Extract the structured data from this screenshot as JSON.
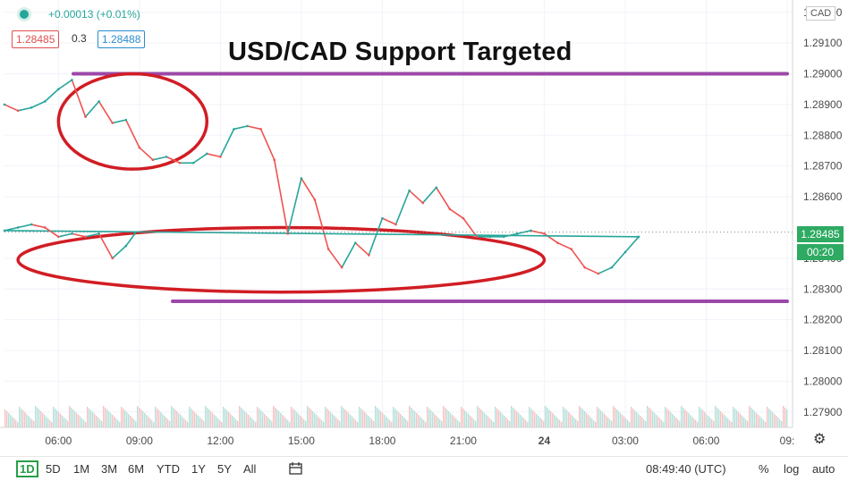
{
  "header": {
    "change": "+0.00013 (+0.01%)",
    "bid_price": "1.28485",
    "spread": "0.3",
    "ask_price": "1.28488",
    "currency": "CAD"
  },
  "headline": "USD/CAD Support Targeted",
  "price_axis": {
    "ticks": [
      "1.29200",
      "1.29100",
      "1.29000",
      "1.28900",
      "1.28800",
      "1.28700",
      "1.28600",
      "1.28400",
      "1.28300",
      "1.28200",
      "1.28100",
      "1.28000",
      "1.27900"
    ],
    "current_price": "1.28485",
    "countdown": "00:20"
  },
  "time_axis": {
    "ticks": [
      "06:00",
      "09:00",
      "12:00",
      "15:00",
      "18:00",
      "21:00",
      "24",
      "03:00",
      "06:00",
      "09:"
    ]
  },
  "bottom_bar": {
    "ranges": [
      "1D",
      "5D",
      "1M",
      "3M",
      "6M",
      "YTD",
      "1Y",
      "5Y",
      "All"
    ],
    "active_range": "1D",
    "clock": "08:49:40 (UTC)",
    "percent": "%",
    "log": "log",
    "auto": "auto"
  },
  "colors": {
    "up": "#26a69a",
    "down": "#ef5350",
    "line": "#9c48a8",
    "circle": "#d11d24",
    "tag": "#2eaa62"
  },
  "chart_data": {
    "type": "line",
    "title": "USD/CAD Support Targeted",
    "x": [
      "04:00",
      "04:30",
      "05:00",
      "05:30",
      "06:00",
      "06:30",
      "07:00",
      "07:30",
      "08:00",
      "08:30",
      "09:00",
      "09:30",
      "10:00",
      "10:30",
      "11:00",
      "11:30",
      "12:00",
      "12:30",
      "13:00",
      "13:30",
      "14:00",
      "14:30",
      "15:00",
      "15:30",
      "16:00",
      "16:30",
      "17:00",
      "17:30",
      "18:00",
      "18:30",
      "19:00",
      "19:30",
      "20:00",
      "20:30",
      "21:00",
      "21:30",
      "22:00",
      "22:30",
      "23:00",
      "23:30",
      "00:00",
      "00:30",
      "01:00",
      "01:30",
      "02:00",
      "02:30",
      "03:00",
      "03:30",
      "04:00",
      "04:30",
      "05:00",
      "05:30",
      "06:00",
      "06:30",
      "07:00",
      "07:30",
      "08:00",
      "08:30",
      "08:50"
    ],
    "series": [
      {
        "values": [
          1.289,
          1.2888,
          1.2889,
          1.2891,
          1.2895,
          1.2898,
          1.2886,
          1.2891,
          1.2884,
          1.2885,
          1.2876,
          1.2872,
          1.2873,
          1.2871,
          1.2871,
          1.2874,
          1.2873,
          1.2882,
          1.2883,
          1.2882,
          1.2872,
          1.2848,
          1.2866,
          1.2859,
          1.2843,
          1.2837,
          1.2845,
          1.2841,
          1.2853,
          1.2851,
          1.2862,
          1.2858,
          1.2863,
          1.2856,
          1.2853,
          1.2847,
          1.2847,
          1.2847,
          1.2848,
          1.2849,
          1.2848,
          1.2845,
          1.2843,
          1.2837,
          1.2835,
          1.2837,
          1.2842,
          1.2847,
          1.2849,
          1.285,
          1.2851,
          1.285,
          1.2847,
          1.2848,
          1.2847,
          1.2848,
          1.284,
          1.2844,
          1.2848
        ]
      }
    ],
    "annotations": [
      {
        "type": "horizontal_line",
        "price": 1.29
      },
      {
        "type": "horizontal_line",
        "price": 1.2826
      },
      {
        "type": "ellipse",
        "from": "06:00",
        "to": "11:30",
        "price_high": 1.29,
        "price_low": 1.2869
      },
      {
        "type": "ellipse",
        "from": "00:00",
        "to": "04:30",
        "price_high": 1.285,
        "price_low": 1.2829
      }
    ],
    "ylim": [
      1.2785,
      1.2924
    ],
    "grid": true
  }
}
